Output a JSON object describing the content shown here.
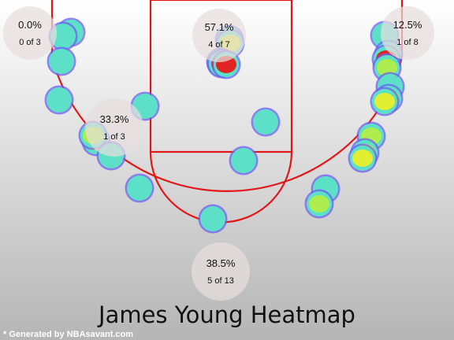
{
  "chart_data": {
    "type": "scatter",
    "title": "James Young Heatmap",
    "credit": "* Generated by NBAsavant.com",
    "zones": [
      {
        "name": "left-corner-three",
        "pct": "0.0%",
        "record": "0 of 3"
      },
      {
        "name": "paint",
        "pct": "57.1%",
        "record": "4 of 7"
      },
      {
        "name": "right-corner-three",
        "pct": "12.5%",
        "record": "1 of 8"
      },
      {
        "name": "left-midrange",
        "pct": "33.3%",
        "record": "1 of 3"
      },
      {
        "name": "top-of-key-three",
        "pct": "38.5%",
        "record": "5 of 13"
      }
    ],
    "shots": [
      {
        "x": -198,
        "y": 8,
        "heat": 0.15
      },
      {
        "x": -208,
        "y": 13,
        "heat": 0.25
      },
      {
        "x": -210,
        "y": 45,
        "heat": 0.1
      },
      {
        "x": -213,
        "y": 94,
        "heat": 0.1
      },
      {
        "x": -166,
        "y": 147,
        "heat": 0.7
      },
      {
        "x": -170,
        "y": 139,
        "heat": 0.45
      },
      {
        "x": -147,
        "y": 165,
        "heat": 0.15
      },
      {
        "x": -111,
        "y": 206,
        "heat": 0.1
      },
      {
        "x": -104,
        "y": 102,
        "heat": 0.25
      },
      {
        "x": 3,
        "y": 17,
        "heat": 0.6
      },
      {
        "x": 4,
        "y": 22,
        "heat": 0.75
      },
      {
        "x": -8,
        "y": 46,
        "heat": 0.95
      },
      {
        "x": -7,
        "y": 48,
        "heat": 1.0
      },
      {
        "x": -1,
        "y": 49,
        "heat": 0.95
      },
      {
        "x": 49,
        "y": 122,
        "heat": 0.15
      },
      {
        "x": 21,
        "y": 171,
        "heat": 0.15
      },
      {
        "x": -18,
        "y": 245,
        "heat": 0.1
      },
      {
        "x": 200,
        "y": 12,
        "heat": 0.3
      },
      {
        "x": 205,
        "y": 36,
        "heat": 0.75
      },
      {
        "x": 202,
        "y": 42,
        "heat": 0.9
      },
      {
        "x": 203,
        "y": 53,
        "heat": 0.5
      },
      {
        "x": 207,
        "y": 77,
        "heat": 0.3
      },
      {
        "x": 205,
        "y": 92,
        "heat": 0.55
      },
      {
        "x": 200,
        "y": 96,
        "heat": 0.6
      },
      {
        "x": 183,
        "y": 140,
        "heat": 0.55
      },
      {
        "x": 175,
        "y": 161,
        "heat": 0.6
      },
      {
        "x": 172,
        "y": 168,
        "heat": 0.65
      },
      {
        "x": 125,
        "y": 207,
        "heat": 0.2
      },
      {
        "x": 117,
        "y": 226,
        "heat": 0.55
      }
    ]
  }
}
